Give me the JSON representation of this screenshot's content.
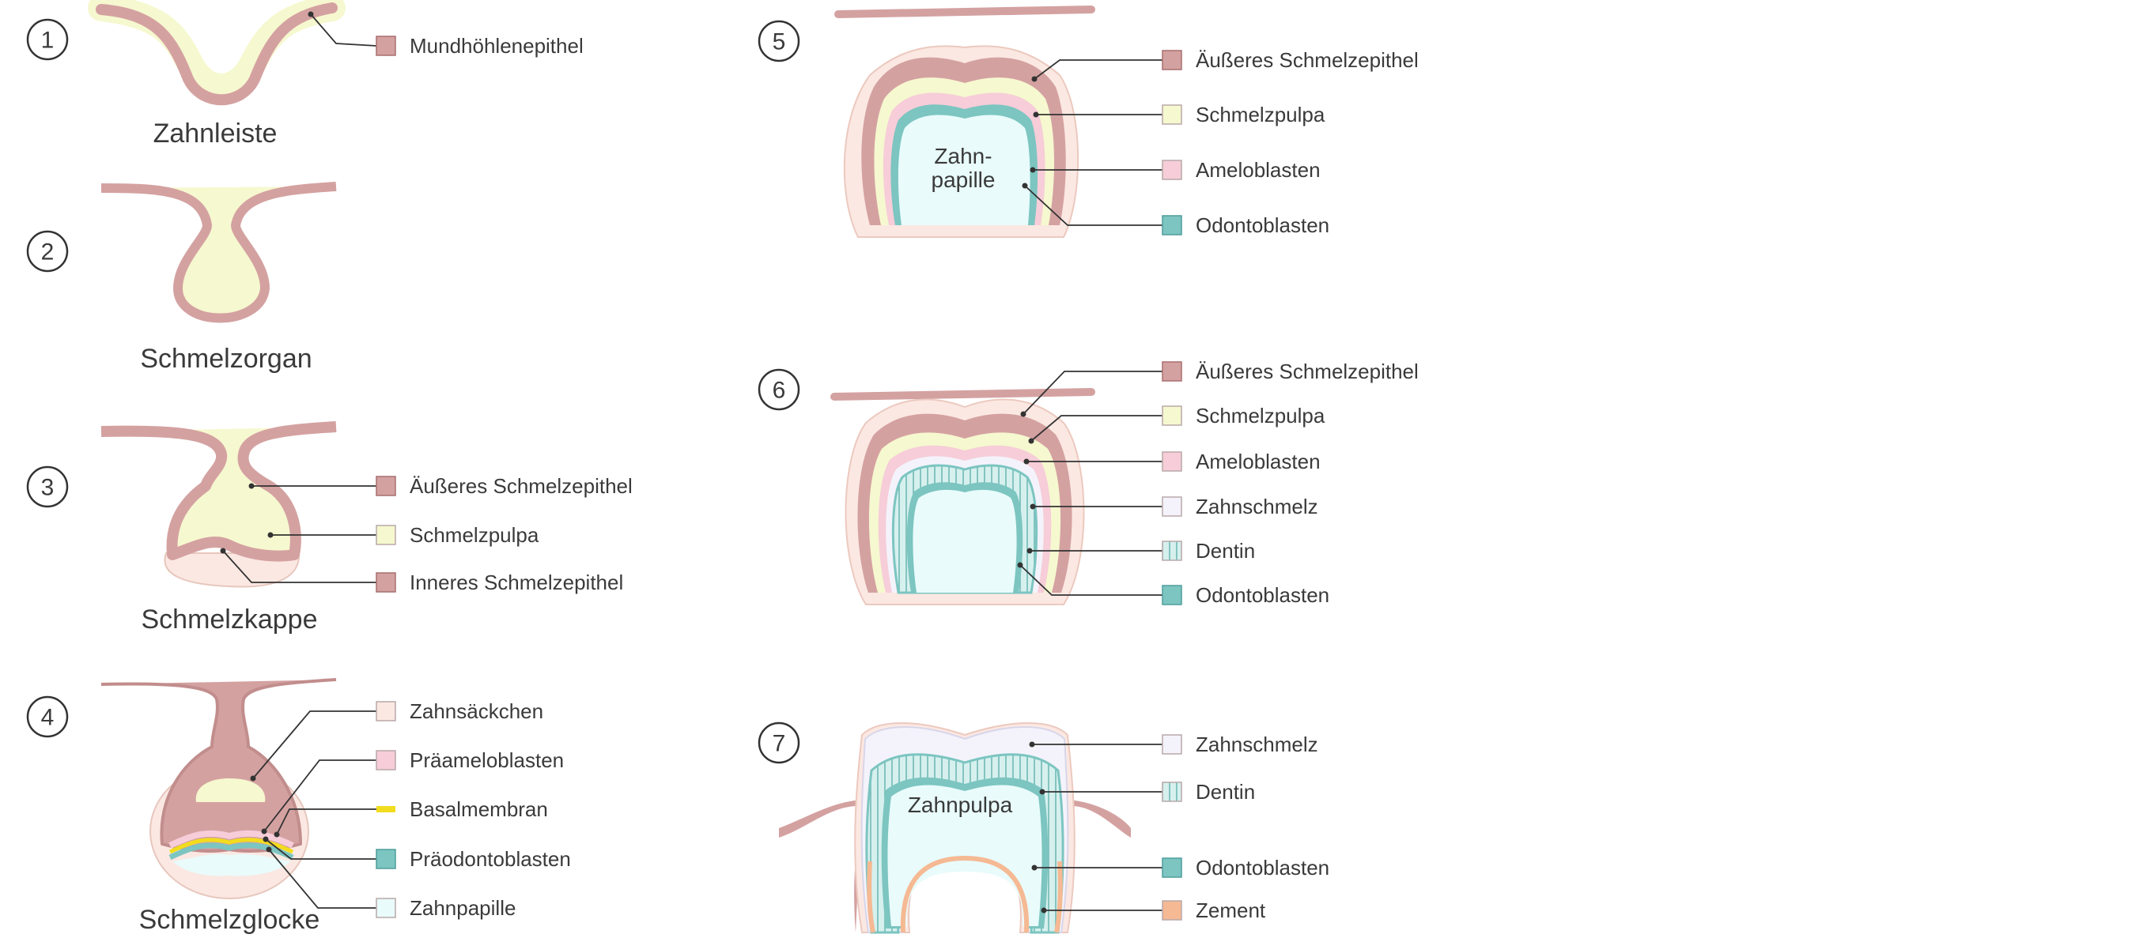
{
  "colors": {
    "epithel": "#d4a1a1",
    "epithel_stroke": "#b07a7a",
    "pulpa": "#f6f8cf",
    "ameloblasten": "#f6cdd8",
    "odontoblasten": "#7cc5c1",
    "papille": "#e9fbfb",
    "saeckchen": "#fbe8e2",
    "schmelz": "#f4f3fb",
    "dentin": "#d6f0ee",
    "basalmembran": "#f2dc1e",
    "zement": "#f5b993",
    "leader": "#333333"
  },
  "stages": [
    {
      "number": "1",
      "caption": "Zahnleiste",
      "labels": [
        {
          "text": "Mundhöhlenepithel",
          "swatch": "epithel"
        }
      ]
    },
    {
      "number": "2",
      "caption": "Schmelzorgan",
      "labels": []
    },
    {
      "number": "3",
      "caption": "Schmelzkappe",
      "labels": [
        {
          "text": "Äußeres Schmelzepithel",
          "swatch": "epithel"
        },
        {
          "text": "Schmelzpulpa",
          "swatch": "pulpa"
        },
        {
          "text": "Inneres Schmelzepithel",
          "swatch": "epithel"
        }
      ]
    },
    {
      "number": "4",
      "caption": "Schmelzglocke",
      "labels": [
        {
          "text": "Zahnsäckchen",
          "swatch": "saeckchen"
        },
        {
          "text": "Präameloblasten",
          "swatch": "ameloblasten"
        },
        {
          "text": "Basalmembran",
          "swatch": "basalmembran"
        },
        {
          "text": "Präodontoblasten",
          "swatch": "odontoblasten"
        },
        {
          "text": "Zahnpapille",
          "swatch": "papille"
        }
      ]
    },
    {
      "number": "5",
      "caption": "",
      "inner_text": [
        "Zahn-",
        "papille"
      ],
      "labels": [
        {
          "text": "Äußeres Schmelzepithel",
          "swatch": "epithel"
        },
        {
          "text": "Schmelzpulpa",
          "swatch": "pulpa"
        },
        {
          "text": "Ameloblasten",
          "swatch": "ameloblasten"
        },
        {
          "text": "Odontoblasten",
          "swatch": "odontoblasten"
        }
      ]
    },
    {
      "number": "6",
      "caption": "",
      "labels": [
        {
          "text": "Äußeres Schmelzepithel",
          "swatch": "epithel"
        },
        {
          "text": "Schmelzpulpa",
          "swatch": "pulpa"
        },
        {
          "text": "Ameloblasten",
          "swatch": "ameloblasten"
        },
        {
          "text": "Zahnschmelz",
          "swatch": "schmelz"
        },
        {
          "text": "Dentin",
          "swatch": "dentin"
        },
        {
          "text": "Odontoblasten",
          "swatch": "odontoblasten"
        }
      ]
    },
    {
      "number": "7",
      "caption": "",
      "inner_text": [
        "Zahnpulpa"
      ],
      "labels": [
        {
          "text": "Zahnschmelz",
          "swatch": "schmelz"
        },
        {
          "text": "Dentin",
          "swatch": "dentin"
        },
        {
          "text": "Odontoblasten",
          "swatch": "odontoblasten"
        },
        {
          "text": "Zement",
          "swatch": "zement"
        }
      ]
    }
  ]
}
